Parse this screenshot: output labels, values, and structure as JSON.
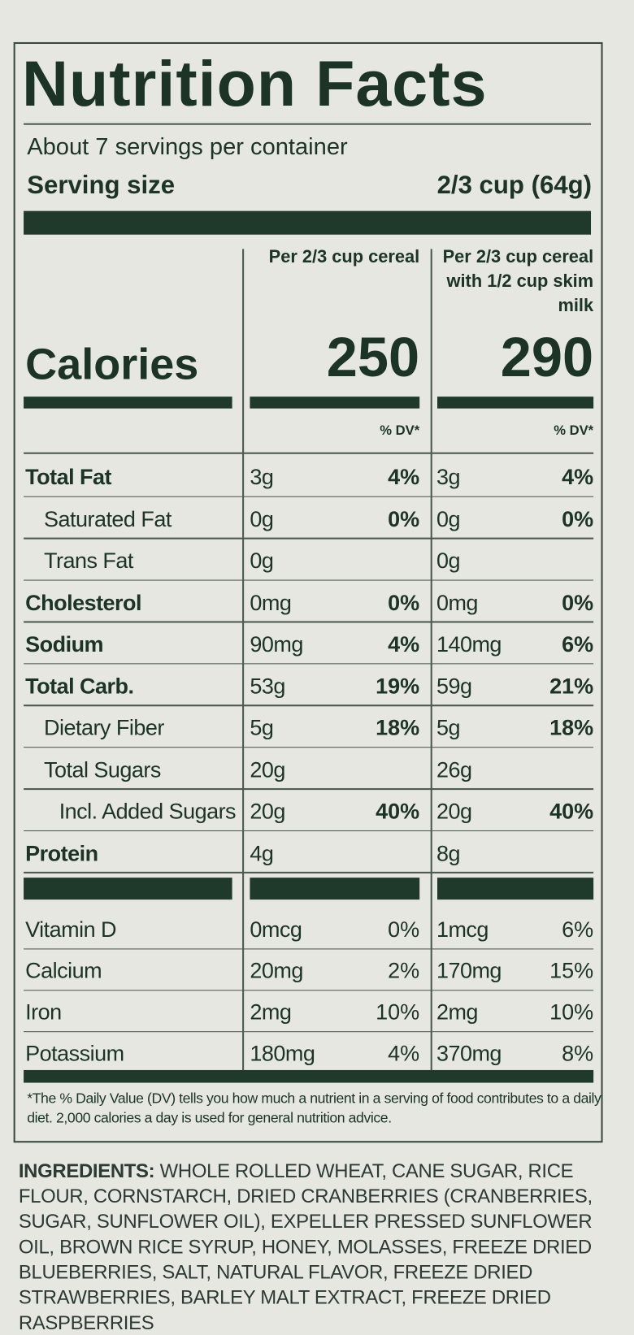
{
  "title": "Nutrition Facts",
  "servings": "About 7 servings per container",
  "serving_size": {
    "label": "Serving size",
    "value": "2/3 cup (64g)"
  },
  "columns": [
    "Per 2/3 cup cereal",
    "Per 2/3 cup cereal with 1/2 cup skim milk"
  ],
  "calories": {
    "label": "Calories",
    "values": [
      "250",
      "290"
    ]
  },
  "dv_header": [
    "% DV*",
    "% DV*"
  ],
  "nutrients": [
    {
      "name": "Total Fat",
      "bold": true,
      "indent": 0,
      "amounts": [
        "3g",
        "3g"
      ],
      "dv": [
        "4%",
        "4%"
      ]
    },
    {
      "name": "Saturated Fat",
      "bold": false,
      "indent": 1,
      "amounts": [
        "0g",
        "0g"
      ],
      "dv": [
        "0%",
        "0%"
      ]
    },
    {
      "name": "Trans Fat",
      "bold": false,
      "indent": 1,
      "amounts": [
        "0g",
        "0g"
      ],
      "dv": [
        null,
        null
      ]
    },
    {
      "name": "Cholesterol",
      "bold": true,
      "indent": 0,
      "amounts": [
        "0mg",
        "0mg"
      ],
      "dv": [
        "0%",
        "0%"
      ]
    },
    {
      "name": "Sodium",
      "bold": true,
      "indent": 0,
      "amounts": [
        "90mg",
        "140mg"
      ],
      "dv": [
        "4%",
        "6%"
      ]
    },
    {
      "name": "Total Carb.",
      "bold": true,
      "indent": 0,
      "amounts": [
        "53g",
        "59g"
      ],
      "dv": [
        "19%",
        "21%"
      ]
    },
    {
      "name": "Dietary Fiber",
      "bold": false,
      "indent": 1,
      "amounts": [
        "5g",
        "5g"
      ],
      "dv": [
        "18%",
        "18%"
      ]
    },
    {
      "name": "Total Sugars",
      "bold": false,
      "indent": 1,
      "amounts": [
        "20g",
        "26g"
      ],
      "dv": [
        null,
        null
      ]
    },
    {
      "name": "Incl. Added Sugars",
      "bold": false,
      "indent": 2,
      "amounts": [
        "20g",
        "20g"
      ],
      "dv": [
        "40%",
        "40%"
      ]
    },
    {
      "name": "Protein",
      "bold": true,
      "indent": 0,
      "amounts": [
        "4g",
        "8g"
      ],
      "dv": [
        null,
        null
      ]
    }
  ],
  "vitamins": [
    {
      "name": "Vitamin D",
      "amounts": [
        "0mcg",
        "1mcg"
      ],
      "dv": [
        "0%",
        "6%"
      ]
    },
    {
      "name": "Calcium",
      "amounts": [
        "20mg",
        "170mg"
      ],
      "dv": [
        "2%",
        "15%"
      ]
    },
    {
      "name": "Iron",
      "amounts": [
        "2mg",
        "2mg"
      ],
      "dv": [
        "10%",
        "10%"
      ]
    },
    {
      "name": "Potassium",
      "amounts": [
        "180mg",
        "370mg"
      ],
      "dv": [
        "4%",
        "8%"
      ]
    }
  ],
  "footnote": "*The % Daily Value (DV) tells you how much a nutrient in a serving of food contributes to a daily diet. 2,000 calories a day is used for general nutrition advice.",
  "ingredients": {
    "label": "INGREDIENTS:",
    "text": "WHOLE ROLLED WHEAT, CANE SUGAR, RICE FLOUR, CORNSTARCH, DRIED CRANBERRIES (CRANBERRIES, SUGAR, SUNFLOWER OIL), EXPELLER PRESSED SUNFLOWER OIL, BROWN RICE SYRUP, HONEY, MOLASSES, FREEZE DRIED BLUEBERRIES, SALT, NATURAL FLAVOR, FREEZE DRIED STRAWBERRIES, BARLEY MALT EXTRACT, FREEZE DRIED RASPBERRIES"
  }
}
